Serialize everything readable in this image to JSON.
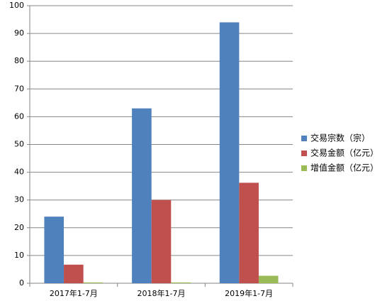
{
  "chart_data": {
    "type": "bar",
    "categories": [
      "2017年1-7月",
      "2018年1-7月",
      "2019年1-7月"
    ],
    "series": [
      {
        "name": "交易宗数（宗）",
        "color": "#4f81bd",
        "values": [
          24,
          63,
          94
        ]
      },
      {
        "name": "交易金额（亿元）",
        "color": "#c0504d",
        "values": [
          6.7,
          30,
          36.2
        ]
      },
      {
        "name": "增值金额（亿元）",
        "color": "#9bbb59",
        "values": [
          0.3,
          0.3,
          2.7
        ]
      }
    ],
    "ylim": [
      0,
      100
    ],
    "yticks": [
      0,
      10,
      20,
      30,
      40,
      50,
      60,
      70,
      80,
      90,
      100
    ],
    "grid": true,
    "legend": "right"
  }
}
